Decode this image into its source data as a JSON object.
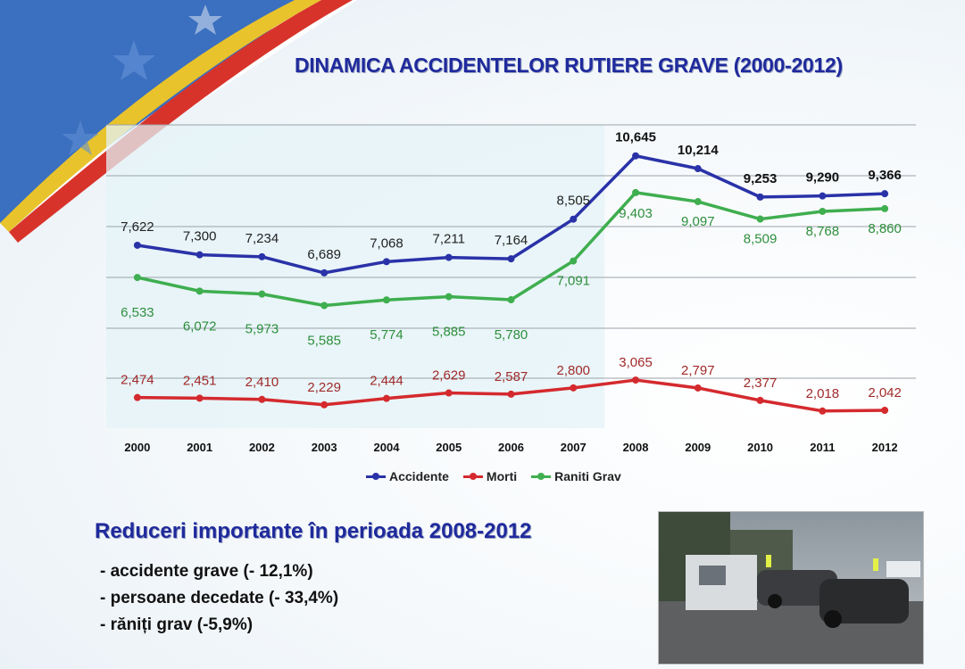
{
  "title": "DINAMICA ACCIDENTELOR RUTIERE GRAVE  (2000-2012)",
  "colors": {
    "accidente": "#2a32a8",
    "morti": "#d42a2e",
    "raniti": "#3fae4f",
    "title": "#1f2a9c",
    "highlight": "#e4f3f7"
  },
  "chart_data": {
    "type": "line",
    "categories": [
      "2000",
      "2001",
      "2002",
      "2003",
      "2004",
      "2005",
      "2006",
      "2007",
      "2008",
      "2009",
      "2010",
      "2011",
      "2012"
    ],
    "series": [
      {
        "name": "Accidente",
        "values": [
          7622,
          7300,
          7234,
          6689,
          7068,
          7211,
          7164,
          8505,
          10645,
          10214,
          9253,
          9290,
          9366
        ],
        "labels": [
          "7,622",
          "7,300",
          "7,234",
          "6,689",
          "7,068",
          "7,211",
          "7,164",
          "8,505",
          "10,645",
          "10,214",
          "9,253",
          "9,290",
          "9,366"
        ]
      },
      {
        "name": "Morti",
        "values": [
          2474,
          2451,
          2410,
          2229,
          2444,
          2629,
          2587,
          2800,
          3065,
          2797,
          2377,
          2018,
          2042
        ],
        "labels": [
          "2,474",
          "2,451",
          "2,410",
          "2,229",
          "2,444",
          "2,629",
          "2,587",
          "2,800",
          "3,065",
          "2,797",
          "2,377",
          "2,018",
          "2,042"
        ]
      },
      {
        "name": "Raniti Grav",
        "values": [
          6533,
          6072,
          5973,
          5585,
          5774,
          5885,
          5780,
          7091,
          9403,
          9097,
          8509,
          8768,
          8860
        ],
        "labels": [
          "6,533",
          "6,072",
          "5,973",
          "5,585",
          "5,774",
          "5,885",
          "5,780",
          "7,091",
          "9,403",
          "9,097",
          "8,509",
          "8,768",
          "8,860"
        ]
      }
    ],
    "highlight_range": [
      "2000",
      "2007"
    ],
    "grid": true,
    "legend": "bottom"
  },
  "reductions": {
    "title": "Reduceri importante în perioada 2008-2012",
    "items": [
      "- accidente grave  (- 12,1%)",
      "- persoane decedate (- 33,4%)",
      "- răniți grav (-5,9%)"
    ]
  }
}
